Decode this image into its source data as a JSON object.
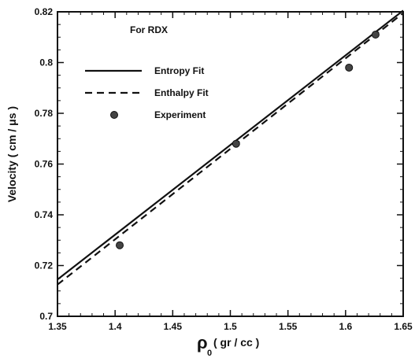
{
  "chart_data": {
    "type": "line",
    "annotation": "For RDX",
    "xlabel_main": "ρ",
    "xlabel_sub": "0",
    "xlabel_rest": "( gr / cc )",
    "ylabel": "Velocity ( cm / μs )",
    "xlim": [
      1.35,
      1.65
    ],
    "ylim": [
      0.7,
      0.82
    ],
    "x_ticks": [
      1.35,
      1.4,
      1.45,
      1.5,
      1.55,
      1.6,
      1.65
    ],
    "x_tick_labels": [
      "1.35",
      "1.4",
      "1.45",
      "1.5",
      "1.55",
      "1.6",
      "1.65"
    ],
    "y_ticks": [
      0.7,
      0.72,
      0.74,
      0.76,
      0.78,
      0.8,
      0.82
    ],
    "y_tick_labels": [
      "0.7",
      "0.72",
      "0.74",
      "0.76",
      "0.78",
      "0.8",
      "0.82"
    ],
    "legend": {
      "placement": "top-left",
      "entries": [
        "Entropy Fit",
        "Enthalpy Fit",
        "Experiment"
      ]
    },
    "series": [
      {
        "name": "Entropy Fit",
        "style": "solid",
        "x": [
          1.35,
          1.65
        ],
        "y": [
          0.7145,
          0.8205
        ]
      },
      {
        "name": "Enthalpy Fit",
        "style": "dashed",
        "x": [
          1.35,
          1.65
        ],
        "y": [
          0.7125,
          0.8195
        ]
      },
      {
        "name": "Experiment",
        "style": "markers",
        "x": [
          1.404,
          1.505,
          1.603,
          1.626
        ],
        "y": [
          0.728,
          0.768,
          0.798,
          0.811
        ]
      }
    ]
  }
}
